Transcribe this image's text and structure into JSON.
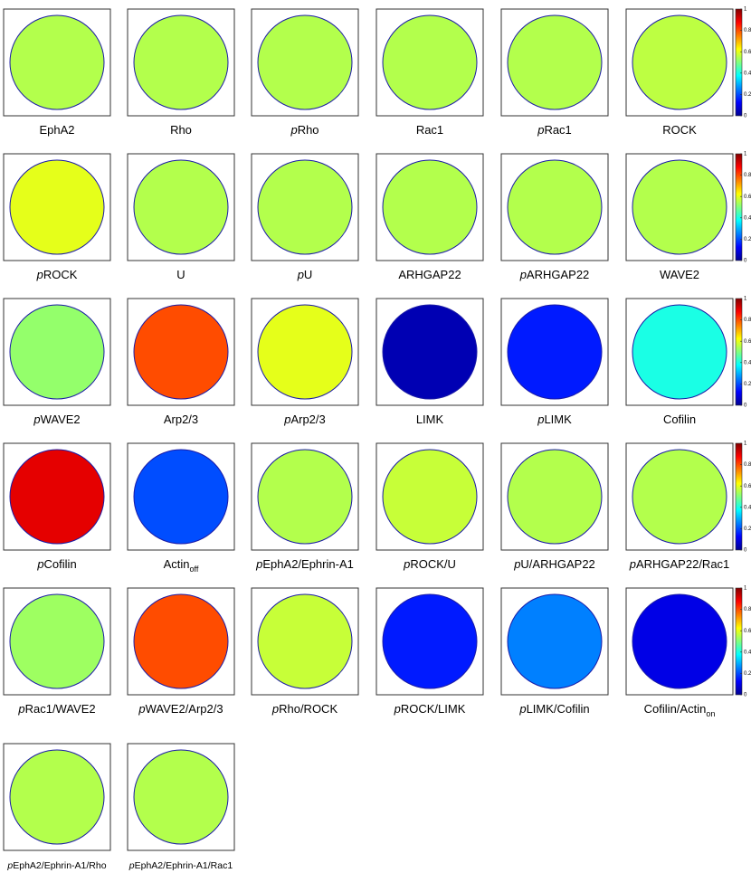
{
  "panels": [
    {
      "label": "EphA2",
      "mean": 0.55
    },
    {
      "label": "Rho",
      "mean": 0.55
    },
    {
      "italic": "p",
      "label": "Rho",
      "mean": 0.55
    },
    {
      "label": "Rac1",
      "mean": 0.55
    },
    {
      "italic": "p",
      "label": "Rac1",
      "mean": 0.55
    },
    {
      "label": "ROCK",
      "mean": 0.56
    },
    {
      "italic": "p",
      "label": "ROCK",
      "mean": 0.6
    },
    {
      "label": "U",
      "mean": 0.55
    },
    {
      "italic": "p",
      "label": "U",
      "mean": 0.55
    },
    {
      "label": "ARHGAP22",
      "mean": 0.55
    },
    {
      "italic": "p",
      "label": "ARHGAP22",
      "mean": 0.55
    },
    {
      "label": "WAVE2",
      "mean": 0.55
    },
    {
      "italic": "p",
      "label": "WAVE2",
      "mean": 0.52
    },
    {
      "label": "Arp2/3",
      "mean": 0.8
    },
    {
      "italic": "p",
      "label": "Arp2/3",
      "mean": 0.6
    },
    {
      "label": "LIMK",
      "mean": 0.05
    },
    {
      "italic": "p",
      "label": "LIMK",
      "mean": 0.15
    },
    {
      "label": "Cofilin",
      "mean": 0.4
    },
    {
      "italic": "p",
      "label": "Cofilin",
      "mean": 0.9
    },
    {
      "label": "Actin",
      "subscript": "off",
      "mean": 0.2
    },
    {
      "italic": "p",
      "label": "EphA2/Ephrin-A1",
      "mean": 0.55
    },
    {
      "italic": "p",
      "label": "ROCK/U",
      "mean": 0.57
    },
    {
      "italic": "p",
      "label": "U/ARHGAP22",
      "mean": 0.55
    },
    {
      "italic": "p",
      "label": "ARHGAP22/Rac1",
      "mean": 0.55
    },
    {
      "italic": "p",
      "label": "Rac1/WAVE2",
      "mean": 0.53
    },
    {
      "italic": "p",
      "label": "WAVE2/Arp2/3",
      "mean": 0.8
    },
    {
      "italic": "p",
      "label": "Rho/ROCK",
      "mean": 0.57
    },
    {
      "italic": "p",
      "label": "ROCK/LIMK",
      "mean": 0.15
    },
    {
      "italic": "p",
      "label": "LIMK/Cofilin",
      "mean": 0.25
    },
    {
      "label": "Cofilin/Actin",
      "subscript": "on",
      "mean": 0.1
    },
    {
      "italic": "p",
      "label": "EphA2/Ephrin-A1/Rho",
      "mean": 0.55
    },
    {
      "italic": "p",
      "label": "EphA2/Ephrin-A1/Rac1",
      "mean": 0.55
    }
  ],
  "colorbar": {
    "lim": [
      0,
      1
    ],
    "ticks": [
      0,
      0.2,
      0.4,
      0.6,
      0.8,
      1
    ]
  }
}
